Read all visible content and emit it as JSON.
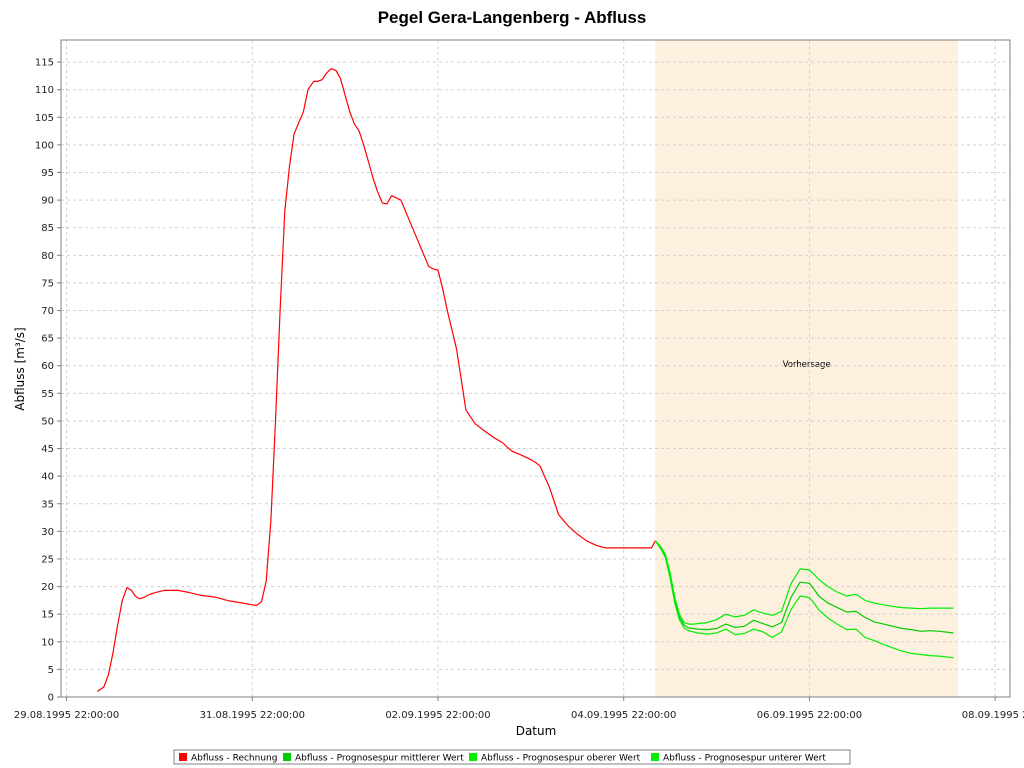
{
  "chart_data": {
    "type": "line",
    "title": "Pegel Gera-Langenberg - Abfluss",
    "xlabel": "Datum",
    "ylabel": "Abfluss [m³/s]",
    "x_unit": "days from 29.08.1995 22:00:00",
    "xlim": [
      -0.06,
      10.16
    ],
    "ylim": [
      0,
      119
    ],
    "yticks": [
      0,
      5,
      10,
      15,
      20,
      25,
      30,
      35,
      40,
      45,
      50,
      55,
      60,
      65,
      70,
      75,
      80,
      85,
      90,
      95,
      100,
      105,
      110,
      115
    ],
    "xticks": [
      {
        "x": 0,
        "label": "29.08.1995 22:00:00"
      },
      {
        "x": 2,
        "label": "31.08.1995 22:00:00"
      },
      {
        "x": 4,
        "label": "02.09.1995 22:00:00"
      },
      {
        "x": 6,
        "label": "04.09.1995 22:00:00"
      },
      {
        "x": 8,
        "label": "06.09.1995 22:00:00"
      },
      {
        "x": 10,
        "label": "08.09.1995 2"
      }
    ],
    "grid": true,
    "legend_position": "bottom",
    "forecast_region": {
      "x_start": 6.34,
      "x_end": 9.6,
      "label": "Vorhersage",
      "label_y": 59.8,
      "color": "#fdf0df"
    },
    "series": [
      {
        "name": "Abfluss - Rechnung",
        "color": "#ff0000",
        "x": [
          0.33,
          0.4,
          0.45,
          0.5,
          0.55,
          0.6,
          0.65,
          0.7,
          0.74,
          0.78,
          0.83,
          0.88,
          0.95,
          1.05,
          1.2,
          1.3,
          1.45,
          1.6,
          1.75,
          1.9,
          2.0,
          2.05,
          2.1,
          2.15,
          2.2,
          2.25,
          2.3,
          2.35,
          2.4,
          2.45,
          2.5,
          2.55,
          2.6,
          2.66,
          2.7,
          2.75,
          2.8,
          2.85,
          2.9,
          2.95,
          3.0,
          3.05,
          3.1,
          3.15,
          3.2,
          3.25,
          3.3,
          3.35,
          3.4,
          3.45,
          3.5,
          3.6,
          3.7,
          3.8,
          3.9,
          3.95,
          4.0,
          4.05,
          4.1,
          4.2,
          4.3,
          4.4,
          4.5,
          4.6,
          4.65,
          4.7,
          4.75,
          4.8,
          4.9,
          4.95,
          5.0,
          5.05,
          5.1,
          5.2,
          5.3,
          5.4,
          5.5,
          5.6,
          5.7,
          5.8,
          5.85,
          5.9,
          5.95,
          6.0,
          6.05,
          6.1,
          6.2,
          6.3,
          6.34
        ],
        "y": [
          1,
          1.8,
          4,
          8,
          13,
          17.5,
          19.8,
          19.3,
          18.3,
          17.8,
          18,
          18.5,
          18.9,
          19.3,
          19.3,
          19.0,
          18.4,
          18.1,
          17.4,
          17.0,
          16.7,
          16.6,
          17.3,
          21,
          32,
          50,
          70,
          88,
          96,
          102,
          104,
          106,
          110,
          111.5,
          111.5,
          111.8,
          113,
          113.8,
          113.5,
          112,
          109,
          106,
          103.8,
          102.5,
          100,
          97,
          94,
          91.5,
          89.5,
          89.3,
          90.8,
          90,
          86,
          82,
          78,
          77.5,
          77.3,
          74,
          70,
          63,
          52,
          49.5,
          48.2,
          47,
          46.5,
          46,
          45.2,
          44.5,
          43.8,
          43.4,
          43,
          42.5,
          41.8,
          38,
          33,
          31,
          29.5,
          28.3,
          27.5,
          27.0,
          27.0,
          27.0,
          27.0,
          27.0,
          27.0,
          27.0,
          27.0,
          27.0,
          28.3
        ]
      },
      {
        "name": "Abfluss - Prognosespur mittlerer Wert",
        "color": "#00cc00",
        "x": [
          6.34,
          6.4,
          6.45,
          6.5,
          6.55,
          6.6,
          6.65,
          6.7,
          6.75,
          6.8,
          6.9,
          7.0,
          7.1,
          7.2,
          7.3,
          7.4,
          7.5,
          7.6,
          7.7,
          7.8,
          7.9,
          8.0,
          8.05,
          8.1,
          8.2,
          8.3,
          8.4,
          8.5,
          8.6,
          8.7,
          8.8,
          8.9,
          9.0,
          9.1,
          9.2,
          9.3,
          9.4,
          9.5,
          9.55
        ],
        "y": [
          28.3,
          27,
          25.5,
          22,
          17.5,
          14.5,
          13.0,
          12.5,
          12.4,
          12.3,
          12.2,
          12.4,
          13.2,
          12.6,
          12.8,
          13.9,
          13.3,
          12.7,
          13.5,
          18,
          20.8,
          20.6,
          19.5,
          18.3,
          17.0,
          16.2,
          15.4,
          15.5,
          14.4,
          13.6,
          13.2,
          12.8,
          12.4,
          12.2,
          11.9,
          12.0,
          11.9,
          11.7,
          11.6
        ]
      },
      {
        "name": "Abfluss - Prognosespur oberer Wert",
        "color": "#00ee00",
        "x": [
          6.34,
          6.4,
          6.45,
          6.5,
          6.55,
          6.6,
          6.65,
          6.7,
          6.75,
          6.8,
          6.9,
          7.0,
          7.1,
          7.2,
          7.3,
          7.4,
          7.5,
          7.6,
          7.7,
          7.8,
          7.9,
          8.0,
          8.05,
          8.1,
          8.2,
          8.3,
          8.4,
          8.5,
          8.6,
          8.7,
          8.8,
          8.9,
          9.0,
          9.1,
          9.2,
          9.3,
          9.4,
          9.5,
          9.55
        ],
        "y": [
          28.3,
          27.2,
          25.8,
          22.5,
          18,
          15,
          13.5,
          13.2,
          13.2,
          13.3,
          13.5,
          14,
          15,
          14.5,
          14.8,
          15.8,
          15.2,
          14.8,
          15.5,
          20.5,
          23.2,
          23.0,
          22.2,
          21.3,
          20.0,
          19.0,
          18.3,
          18.6,
          17.5,
          17.0,
          16.7,
          16.4,
          16.2,
          16.1,
          16.0,
          16.1,
          16.1,
          16.1,
          16.1
        ]
      },
      {
        "name": "Abfluss - Prognosespur unterer Wert",
        "color": "#00ee00",
        "x": [
          6.34,
          6.4,
          6.45,
          6.5,
          6.55,
          6.6,
          6.65,
          6.7,
          6.75,
          6.8,
          6.9,
          7.0,
          7.1,
          7.2,
          7.3,
          7.4,
          7.5,
          7.6,
          7.7,
          7.8,
          7.9,
          8.0,
          8.05,
          8.1,
          8.2,
          8.3,
          8.4,
          8.5,
          8.6,
          8.7,
          8.8,
          8.9,
          9.0,
          9.1,
          9.2,
          9.3,
          9.4,
          9.5,
          9.55
        ],
        "y": [
          28.3,
          26.8,
          25.2,
          21.5,
          17,
          14,
          12.5,
          12.0,
          11.8,
          11.6,
          11.4,
          11.6,
          12.3,
          11.3,
          11.5,
          12.3,
          11.8,
          10.8,
          11.8,
          15.8,
          18.3,
          18.0,
          17.0,
          15.8,
          14.3,
          13.2,
          12.2,
          12.3,
          10.8,
          10.2,
          9.5,
          8.9,
          8.3,
          7.9,
          7.7,
          7.5,
          7.4,
          7.2,
          7.1
        ]
      }
    ]
  }
}
